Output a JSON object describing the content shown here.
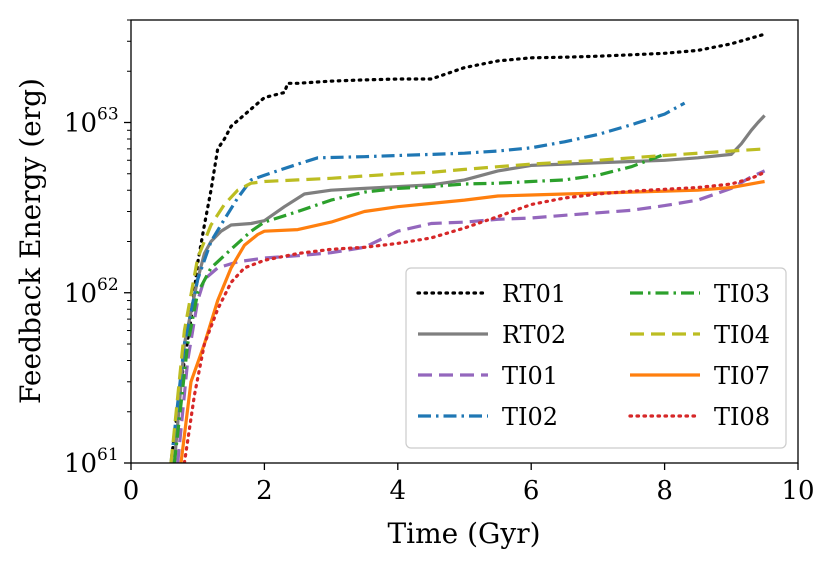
{
  "chart_data": {
    "type": "line",
    "title": "",
    "xlabel": "Time (Gyr)",
    "ylabel": "Feedback Energy (erg)",
    "xlim": [
      0,
      10
    ],
    "ylim": [
      1e+61,
      4e+63
    ],
    "yscale": "log",
    "x_ticks": [
      0,
      2,
      4,
      6,
      8,
      10
    ],
    "x_tick_labels": [
      "0",
      "2",
      "4",
      "6",
      "8",
      "10"
    ],
    "y_ticks": [
      {
        "value": 1e+61,
        "base": "10",
        "exp": "61"
      },
      {
        "value": 1e+62,
        "base": "10",
        "exp": "62"
      },
      {
        "value": 1e+63,
        "base": "10",
        "exp": "63"
      }
    ],
    "legend_position": "lower-right",
    "series": [
      {
        "name": "RT01",
        "color": "#000000",
        "style": "dotted",
        "x": [
          0.6,
          0.75,
          0.9,
          1.0,
          1.1,
          1.2,
          1.3,
          1.4,
          1.5,
          1.8,
          2.0,
          2.3,
          2.35,
          2.5,
          3.0,
          3.5,
          4.0,
          4.5,
          5.0,
          5.5,
          6.0,
          6.5,
          7.0,
          7.5,
          8.0,
          8.5,
          9.0,
          9.5
        ],
        "y": [
          1e+61,
          3e+61,
          7e+61,
          1.5e+62,
          2.5e+62,
          4e+62,
          7e+62,
          8e+62,
          9.5e+62,
          1.2e+63,
          1.4e+63,
          1.5e+63,
          1.7e+63,
          1.7e+63,
          1.75e+63,
          1.78e+63,
          1.8e+63,
          1.8e+63,
          2.1e+63,
          2.3e+63,
          2.4e+63,
          2.42e+63,
          2.45e+63,
          2.5e+63,
          2.55e+63,
          2.65e+63,
          2.9e+63,
          3.3e+63
        ]
      },
      {
        "name": "RT02",
        "color": "#7f7f7f",
        "style": "solid",
        "x": [
          0.65,
          0.8,
          1.0,
          1.1,
          1.2,
          1.35,
          1.5,
          1.8,
          2.0,
          2.3,
          2.6,
          3.0,
          3.5,
          4.0,
          4.5,
          5.0,
          5.5,
          6.0,
          6.5,
          7.0,
          7.5,
          8.0,
          8.5,
          9.0,
          9.15,
          9.3,
          9.4,
          9.5
        ],
        "y": [
          1e+61,
          5e+61,
          1.2e+62,
          1.7e+62,
          2e+62,
          2.3e+62,
          2.5e+62,
          2.55e+62,
          2.65e+62,
          3.2e+62,
          3.8e+62,
          4e+62,
          4.1e+62,
          4.2e+62,
          4.3e+62,
          4.6e+62,
          5.2e+62,
          5.6e+62,
          5.7e+62,
          5.8e+62,
          5.9e+62,
          6e+62,
          6.2e+62,
          6.5e+62,
          7.5e+62,
          9e+62,
          1e+63,
          1.1e+63
        ]
      },
      {
        "name": "TI01",
        "color": "#9467bd",
        "style": "dashed",
        "x": [
          0.7,
          0.85,
          1.0,
          1.1,
          1.3,
          1.6,
          2.0,
          2.5,
          3.0,
          3.5,
          4.0,
          4.5,
          5.0,
          5.5,
          6.0,
          6.5,
          7.0,
          7.5,
          8.0,
          8.5,
          9.0,
          9.3,
          9.5
        ],
        "y": [
          1e+61,
          4e+61,
          9e+61,
          1.2e+62,
          1.4e+62,
          1.52e+62,
          1.6e+62,
          1.65e+62,
          1.72e+62,
          1.85e+62,
          2.3e+62,
          2.55e+62,
          2.6e+62,
          2.7e+62,
          2.75e+62,
          2.85e+62,
          2.95e+62,
          3.05e+62,
          3.25e+62,
          3.5e+62,
          4.1e+62,
          4.8e+62,
          5.2e+62
        ]
      },
      {
        "name": "TI02",
        "color": "#1f77b4",
        "style": "dashdot",
        "x": [
          0.6,
          0.8,
          1.0,
          1.2,
          1.4,
          1.6,
          1.8,
          2.0,
          2.5,
          2.8,
          3.5,
          4.0,
          4.5,
          5.0,
          5.5,
          6.0,
          6.5,
          7.0,
          7.5,
          8.0,
          8.3
        ],
        "y": [
          1e+61,
          5e+61,
          1.2e+62,
          2e+62,
          2.7e+62,
          3.6e+62,
          4.6e+62,
          4.9e+62,
          5.7e+62,
          6.2e+62,
          6.3e+62,
          6.4e+62,
          6.5e+62,
          6.6e+62,
          6.8e+62,
          7.1e+62,
          7.7e+62,
          8.5e+62,
          9.7e+62,
          1.12e+63,
          1.3e+63
        ]
      },
      {
        "name": "TI03",
        "color": "#2ca02c",
        "style": "dashdot",
        "x": [
          0.65,
          0.85,
          1.0,
          1.2,
          1.5,
          1.8,
          2.0,
          2.5,
          3.0,
          3.5,
          4.0,
          4.5,
          5.0,
          5.5,
          6.0,
          6.5,
          7.0,
          7.5,
          8.0
        ],
        "y": [
          1e+61,
          5e+61,
          1e+62,
          1.4e+62,
          1.8e+62,
          2.3e+62,
          2.6e+62,
          3e+62,
          3.5e+62,
          3.9e+62,
          4.1e+62,
          4.2e+62,
          4.35e+62,
          4.4e+62,
          4.5e+62,
          4.6e+62,
          4.9e+62,
          5.5e+62,
          6.5e+62
        ]
      },
      {
        "name": "TI04",
        "color": "#bcbd22",
        "style": "dashed",
        "x": [
          0.6,
          0.8,
          1.0,
          1.2,
          1.4,
          1.6,
          1.8,
          2.0,
          2.5,
          3.0,
          3.5,
          4.0,
          4.5,
          5.0,
          5.5,
          6.0,
          6.5,
          7.0,
          7.5,
          8.0,
          8.5,
          9.0,
          9.5
        ],
        "y": [
          1e+61,
          6e+61,
          1.6e+62,
          2.5e+62,
          3.3e+62,
          4e+62,
          4.4e+62,
          4.5e+62,
          4.6e+62,
          4.7e+62,
          4.85e+62,
          5e+62,
          5.1e+62,
          5.3e+62,
          5.5e+62,
          5.7e+62,
          5.85e+62,
          6e+62,
          6.2e+62,
          6.4e+62,
          6.6e+62,
          6.8e+62,
          7e+62
        ]
      },
      {
        "name": "TI07",
        "color": "#ff7f0e",
        "style": "solid",
        "x": [
          0.75,
          0.9,
          1.1,
          1.3,
          1.5,
          1.7,
          1.9,
          2.0,
          2.5,
          3.0,
          3.5,
          4.0,
          4.5,
          5.0,
          5.5,
          6.0,
          6.5,
          7.0,
          7.5,
          8.0,
          8.5,
          9.0,
          9.5
        ],
        "y": [
          1e+61,
          3e+61,
          5e+61,
          9e+61,
          1.4e+62,
          1.9e+62,
          2.2e+62,
          2.3e+62,
          2.35e+62,
          2.6e+62,
          3e+62,
          3.2e+62,
          3.35e+62,
          3.5e+62,
          3.7e+62,
          3.75e+62,
          3.8e+62,
          3.85e+62,
          3.9e+62,
          3.95e+62,
          4e+62,
          4.15e+62,
          4.5e+62
        ]
      },
      {
        "name": "TI08",
        "color": "#d62728",
        "style": "dotted",
        "x": [
          0.8,
          0.95,
          1.1,
          1.3,
          1.5,
          1.7,
          2.0,
          2.5,
          3.0,
          3.5,
          4.0,
          4.5,
          5.0,
          5.5,
          6.0,
          6.5,
          7.0,
          7.5,
          8.0,
          8.5,
          9.0,
          9.3,
          9.5
        ],
        "y": [
          1e+61,
          2.5e+61,
          5e+61,
          8e+61,
          1.15e+62,
          1.4e+62,
          1.55e+62,
          1.7e+62,
          1.8e+62,
          1.85e+62,
          1.95e+62,
          2.1e+62,
          2.4e+62,
          2.8e+62,
          3.3e+62,
          3.6e+62,
          3.8e+62,
          3.95e+62,
          4.05e+62,
          4.15e+62,
          4.35e+62,
          4.7e+62,
          5.1e+62
        ]
      }
    ]
  }
}
